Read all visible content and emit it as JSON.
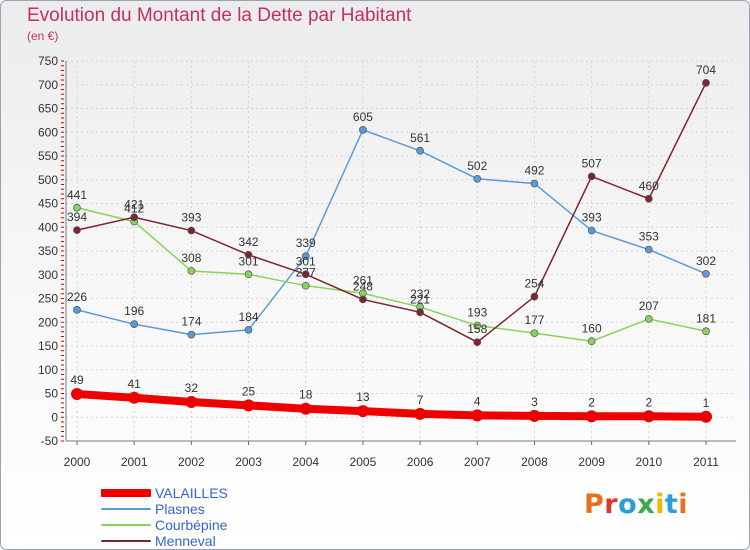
{
  "header": {
    "title": "Evolution du Montant de la Dette par Habitant",
    "subtitle": "(en €)"
  },
  "logo": {
    "text": "Proxiti"
  },
  "chart_data": {
    "type": "line",
    "title": "Evolution du Montant de la Dette par Habitant",
    "subtitle": "(en €)",
    "x": [
      2000,
      2001,
      2002,
      2003,
      2004,
      2005,
      2006,
      2007,
      2008,
      2009,
      2010,
      2011
    ],
    "ylim": [
      -50,
      750
    ],
    "yticks": [
      -50,
      0,
      50,
      100,
      150,
      200,
      250,
      300,
      350,
      400,
      450,
      500,
      550,
      600,
      650,
      700,
      750
    ],
    "grid": true,
    "legend_position": "bottom-left",
    "series": [
      {
        "name": "Plasnes",
        "color": "#5b9bd5",
        "values": [
          226,
          196,
          174,
          184,
          339,
          605,
          561,
          502,
          492,
          393,
          353,
          302
        ]
      },
      {
        "name": "Courbépine",
        "color": "#86d45a",
        "values": [
          441,
          412,
          308,
          301,
          277,
          261,
          232,
          193,
          177,
          160,
          207,
          181
        ]
      },
      {
        "name": "Menneval",
        "color": "#7a2630",
        "values": [
          394,
          421,
          393,
          342,
          301,
          248,
          221,
          158,
          254,
          507,
          460,
          704
        ]
      },
      {
        "name": "VALAILLES",
        "color": "#ee0000",
        "values": [
          49,
          41,
          32,
          25,
          18,
          13,
          7,
          4,
          3,
          2,
          2,
          1
        ]
      }
    ],
    "legend_order": [
      "VALAILLES",
      "Plasnes",
      "Courbépine",
      "Menneval"
    ]
  }
}
